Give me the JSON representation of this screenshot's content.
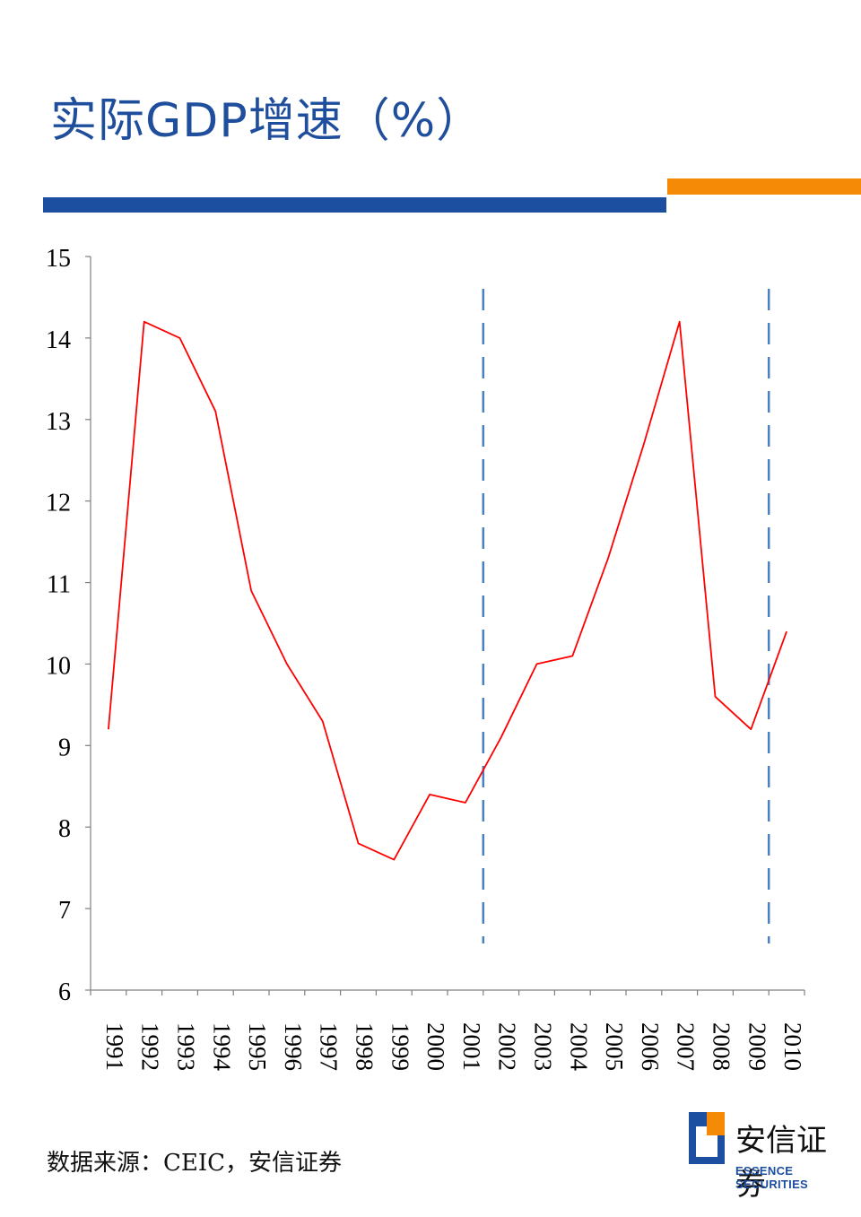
{
  "title": "实际GDP增速（%）",
  "source": "数据来源：CEIC，安信证券",
  "logo": {
    "cn": "安信证券",
    "en": "ESSENCE SECURITIES"
  },
  "colors": {
    "title": "#1f4e9c",
    "bar_blue": "#1c4f9f",
    "bar_orange": "#f58a07",
    "line": "#ff0000",
    "marker_lines": "#4a7fc0"
  },
  "chart_data": {
    "type": "line",
    "title": "",
    "xlabel": "",
    "ylabel": "",
    "ylim": [
      6,
      15
    ],
    "yticks": [
      6,
      7,
      8,
      9,
      10,
      11,
      12,
      13,
      14,
      15
    ],
    "categories": [
      "1991",
      "1992",
      "1993",
      "1994",
      "1995",
      "1996",
      "1997",
      "1998",
      "1999",
      "2000",
      "2001",
      "2002",
      "2003",
      "2004",
      "2005",
      "2006",
      "2007",
      "2008",
      "2009",
      "2010"
    ],
    "series": [
      {
        "values": [
          9.2,
          14.2,
          14.0,
          13.1,
          10.9,
          10.0,
          9.3,
          7.8,
          7.6,
          8.4,
          8.3,
          9.1,
          10.0,
          10.1,
          11.3,
          12.7,
          14.2,
          9.6,
          9.2,
          10.4
        ]
      }
    ],
    "vertical_markers": [
      {
        "between": [
          "2001",
          "2002"
        ]
      },
      {
        "between": [
          "2009",
          "2010"
        ]
      }
    ],
    "grid": false,
    "legend": "none"
  }
}
